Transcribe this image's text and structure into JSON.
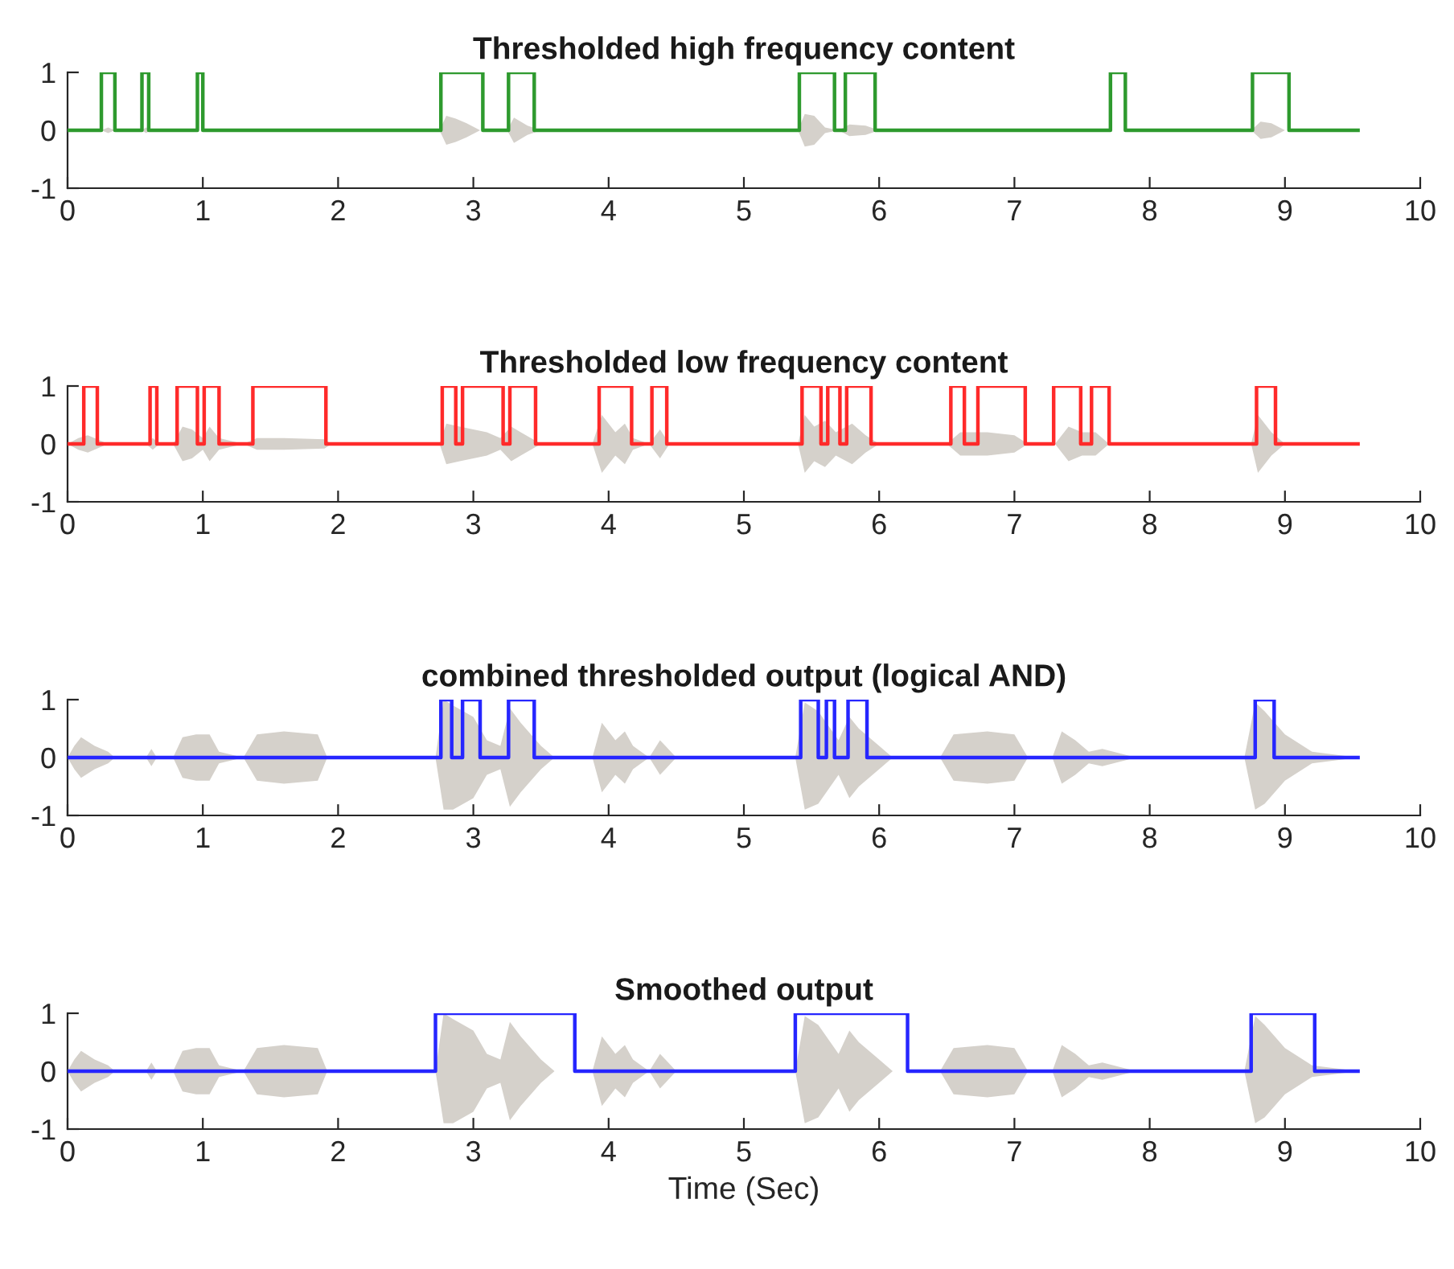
{
  "chart_data": [
    {
      "type": "line",
      "title": "Thresholded high frequency content",
      "xlim": [
        0,
        10
      ],
      "ylim": [
        -1,
        1
      ],
      "xticks": [
        0,
        1,
        2,
        3,
        4,
        5,
        6,
        7,
        8,
        9,
        10
      ],
      "yticks": [
        -1,
        0,
        1
      ],
      "grid": false,
      "tick_labels": true,
      "series": [
        {
          "color": "#d5d1cb",
          "x": [
            0,
            0.25,
            0.3,
            0.35,
            0.55,
            0.58,
            0.62,
            2.75,
            2.8,
            2.87,
            2.95,
            3.05,
            3.25,
            3.3,
            3.4,
            3.5,
            5.4,
            5.45,
            5.52,
            5.6,
            5.7,
            5.78,
            5.9,
            6.0,
            8.75,
            8.82,
            8.9,
            9.0,
            9.54
          ],
          "values": [
            null,
            null,
            null,
            null,
            null,
            null,
            null,
            null,
            null,
            null,
            null,
            null,
            null,
            null,
            null,
            null,
            null,
            null,
            null,
            null,
            null,
            null,
            null,
            null,
            null,
            null,
            null,
            null,
            null
          ],
          "upper": [
            0,
            0,
            0.05,
            0,
            0,
            0.05,
            0,
            0,
            0.25,
            0.2,
            0.12,
            0,
            0,
            0.22,
            0.08,
            0,
            0,
            0.28,
            0.25,
            0.05,
            0,
            0.1,
            0.08,
            0,
            0,
            0.15,
            0.12,
            0,
            0
          ],
          "lower": [
            0,
            0,
            -0.05,
            0,
            0,
            -0.05,
            0,
            0,
            -0.25,
            -0.2,
            -0.12,
            0,
            0,
            -0.22,
            -0.08,
            0,
            0,
            -0.28,
            -0.25,
            -0.05,
            0,
            -0.1,
            -0.08,
            0,
            0,
            -0.15,
            -0.12,
            0,
            0
          ]
        },
        {
          "color": "#2e9a2e",
          "x": [
            0,
            0.25,
            0.25,
            0.35,
            0.35,
            0.55,
            0.55,
            0.6,
            0.6,
            0.96,
            0.96,
            1.0,
            1.0,
            2.76,
            2.76,
            3.07,
            3.07,
            3.26,
            3.26,
            3.45,
            3.45,
            5.41,
            5.41,
            5.67,
            5.67,
            5.75,
            5.75,
            5.97,
            5.97,
            7.71,
            7.71,
            7.82,
            7.82,
            8.76,
            8.76,
            9.03,
            9.03,
            9.54
          ],
          "values": [
            0,
            0,
            1,
            1,
            0,
            0,
            1,
            1,
            0,
            0,
            1,
            1,
            0,
            0,
            1,
            1,
            0,
            0,
            1,
            1,
            0,
            0,
            1,
            1,
            0,
            0,
            1,
            1,
            0,
            0,
            1,
            1,
            0,
            0,
            1,
            1,
            0,
            0
          ]
        }
      ]
    },
    {
      "type": "line",
      "title": "Thresholded low frequency content",
      "xlim": [
        0,
        10
      ],
      "ylim": [
        -1,
        1
      ],
      "xticks": [
        0,
        1,
        2,
        3,
        4,
        5,
        6,
        7,
        8,
        9,
        10
      ],
      "yticks": [
        -1,
        0,
        1
      ],
      "grid": false,
      "tick_labels": true,
      "series": [
        {
          "color": "#d5d1cb",
          "x": [
            0,
            0.08,
            0.15,
            0.25,
            0.3,
            0.58,
            0.63,
            0.68,
            0.78,
            0.85,
            0.92,
            1.0,
            1.05,
            1.12,
            1.3,
            1.4,
            1.6,
            1.9,
            1.95,
            2.75,
            2.8,
            2.9,
            3.0,
            3.1,
            3.2,
            3.28,
            3.35,
            3.5,
            3.88,
            3.95,
            4.05,
            4.12,
            4.18,
            4.3,
            4.38,
            4.45,
            5.4,
            5.45,
            5.52,
            5.6,
            5.68,
            5.8,
            5.9,
            6.0,
            6.5,
            6.6,
            6.8,
            7.0,
            7.1,
            7.3,
            7.4,
            7.5,
            7.6,
            7.7,
            8.75,
            8.8,
            8.9,
            9.0
          ],
          "values": [
            null,
            null,
            null,
            null,
            null,
            null,
            null,
            null,
            null,
            null,
            null,
            null,
            null,
            null,
            null,
            null,
            null,
            null,
            null,
            null,
            null,
            null,
            null,
            null,
            null,
            null,
            null,
            null,
            null,
            null,
            null,
            null,
            null,
            null,
            null,
            null,
            null,
            null,
            null,
            null,
            null,
            null,
            null,
            null,
            null,
            null,
            null,
            null,
            null,
            null,
            null,
            null,
            null,
            null,
            null,
            null,
            null,
            null
          ],
          "upper": [
            0,
            0.1,
            0.15,
            0.05,
            0,
            0,
            0.1,
            0,
            0,
            0.3,
            0.25,
            0.1,
            0.3,
            0.1,
            0,
            0.1,
            0.1,
            0.08,
            0,
            0,
            0.35,
            0.3,
            0.25,
            0.2,
            0.1,
            0.3,
            0.2,
            0,
            0,
            0.5,
            0.2,
            0.35,
            0.1,
            0,
            0.25,
            0,
            0,
            0.5,
            0.3,
            0.4,
            0.2,
            0.35,
            0.15,
            0,
            0,
            0.2,
            0.2,
            0.15,
            0,
            0,
            0.3,
            0.2,
            0.2,
            0,
            0,
            0.5,
            0.2,
            0
          ],
          "lower": [
            0,
            -0.1,
            -0.15,
            -0.05,
            0,
            0,
            -0.1,
            0,
            0,
            -0.3,
            -0.25,
            -0.1,
            -0.3,
            -0.1,
            0,
            -0.1,
            -0.1,
            -0.08,
            0,
            0,
            -0.35,
            -0.3,
            -0.25,
            -0.2,
            -0.1,
            -0.3,
            -0.2,
            0,
            0,
            -0.5,
            -0.2,
            -0.35,
            -0.1,
            0,
            -0.25,
            0,
            0,
            -0.5,
            -0.3,
            -0.4,
            -0.2,
            -0.35,
            -0.15,
            0,
            0,
            -0.2,
            -0.2,
            -0.15,
            0,
            0,
            -0.3,
            -0.2,
            -0.2,
            0,
            0,
            -0.5,
            -0.2,
            0
          ]
        },
        {
          "color": "#ff2a2a",
          "x": [
            0,
            0.12,
            0.12,
            0.22,
            0.22,
            0.61,
            0.61,
            0.66,
            0.66,
            0.81,
            0.81,
            0.96,
            0.96,
            1.01,
            1.01,
            1.12,
            1.12,
            1.37,
            1.37,
            1.91,
            1.91,
            2.77,
            2.77,
            2.87,
            2.87,
            2.92,
            2.92,
            3.22,
            3.22,
            3.27,
            3.27,
            3.46,
            3.46,
            3.93,
            3.93,
            4.17,
            4.17,
            4.32,
            4.32,
            4.43,
            4.43,
            5.43,
            5.43,
            5.57,
            5.57,
            5.62,
            5.62,
            5.71,
            5.71,
            5.76,
            5.76,
            5.94,
            5.94,
            6.53,
            6.53,
            6.63,
            6.63,
            6.73,
            6.73,
            7.08,
            7.08,
            7.29,
            7.29,
            7.49,
            7.49,
            7.57,
            7.57,
            7.7,
            7.7,
            8.79,
            8.79,
            8.93,
            8.93,
            9.54
          ],
          "values": [
            0,
            0,
            1,
            1,
            0,
            0,
            1,
            1,
            0,
            0,
            1,
            1,
            0,
            0,
            1,
            1,
            0,
            0,
            1,
            1,
            0,
            0,
            1,
            1,
            0,
            0,
            1,
            1,
            0,
            0,
            1,
            1,
            0,
            0,
            1,
            1,
            0,
            0,
            1,
            1,
            0,
            0,
            1,
            1,
            0,
            0,
            1,
            1,
            0,
            0,
            1,
            1,
            0,
            0,
            1,
            1,
            0,
            0,
            1,
            1,
            0,
            0,
            1,
            1,
            0,
            0,
            1,
            1,
            0,
            0,
            1,
            1,
            0,
            0
          ]
        }
      ]
    },
    {
      "type": "line",
      "title": "combined thresholded output (logical AND)",
      "xlim": [
        0,
        10
      ],
      "ylim": [
        -1,
        1
      ],
      "xticks": [
        0,
        1,
        2,
        3,
        4,
        5,
        6,
        7,
        8,
        9,
        10
      ],
      "yticks": [
        -1,
        0,
        1
      ],
      "grid": false,
      "tick_labels": true,
      "series": [
        {
          "color": "#d5d1cb",
          "x": [
            0,
            0.05,
            0.1,
            0.2,
            0.3,
            0.35,
            0.58,
            0.62,
            0.66,
            0.78,
            0.85,
            0.95,
            1.05,
            1.12,
            1.3,
            1.4,
            1.6,
            1.85,
            1.92,
            2.72,
            2.78,
            2.85,
            3.0,
            3.1,
            3.2,
            3.27,
            3.35,
            3.5,
            3.6,
            3.88,
            3.95,
            4.05,
            4.12,
            4.18,
            4.3,
            4.38,
            4.42,
            4.5,
            5.38,
            5.45,
            5.55,
            5.7,
            5.78,
            5.85,
            6.0,
            6.1,
            6.45,
            6.55,
            6.8,
            7.0,
            7.1,
            7.28,
            7.35,
            7.45,
            7.55,
            7.65,
            7.9,
            8.7,
            8.78,
            8.85,
            9.0,
            9.2,
            9.54
          ],
          "values": [
            null,
            null,
            null,
            null,
            null,
            null,
            null,
            null,
            null,
            null,
            null,
            null,
            null,
            null,
            null,
            null,
            null,
            null,
            null,
            null,
            null,
            null,
            null,
            null,
            null,
            null,
            null,
            null,
            null,
            null,
            null,
            null,
            null,
            null,
            null,
            null,
            null,
            null,
            null,
            null,
            null,
            null,
            null,
            null,
            null,
            null,
            null,
            null,
            null,
            null,
            null,
            null,
            null,
            null,
            null,
            null,
            null,
            null,
            null,
            null,
            null,
            null,
            null
          ],
          "upper": [
            0,
            0.2,
            0.35,
            0.2,
            0.1,
            0,
            0,
            0.15,
            0,
            0,
            0.35,
            0.4,
            0.4,
            0.1,
            0,
            0.4,
            0.45,
            0.4,
            0,
            0,
            1,
            0.9,
            0.7,
            0.3,
            0.2,
            0.85,
            0.6,
            0.2,
            0,
            0,
            0.6,
            0.3,
            0.45,
            0.2,
            0,
            0.3,
            0.2,
            0,
            0,
            0.95,
            0.8,
            0.3,
            0.7,
            0.5,
            0.2,
            0,
            0,
            0.4,
            0.45,
            0.4,
            0,
            0,
            0.45,
            0.3,
            0.1,
            0.15,
            0,
            0,
            0.95,
            0.8,
            0.4,
            0.1,
            0
          ],
          "lower": [
            0,
            -0.2,
            -0.35,
            -0.2,
            -0.1,
            0,
            0,
            -0.15,
            0,
            0,
            -0.35,
            -0.4,
            -0.4,
            -0.1,
            0,
            -0.4,
            -0.45,
            -0.4,
            0,
            0,
            -0.9,
            -0.9,
            -0.7,
            -0.3,
            -0.2,
            -0.85,
            -0.6,
            -0.2,
            0,
            0,
            -0.6,
            -0.3,
            -0.45,
            -0.2,
            0,
            -0.3,
            -0.2,
            0,
            0,
            -0.9,
            -0.8,
            -0.3,
            -0.7,
            -0.5,
            -0.2,
            0,
            0,
            -0.4,
            -0.45,
            -0.4,
            0,
            0,
            -0.45,
            -0.3,
            -0.1,
            -0.15,
            0,
            0,
            -0.9,
            -0.8,
            -0.4,
            -0.1,
            0
          ]
        },
        {
          "color": "#2626ff",
          "x": [
            0,
            2.76,
            2.76,
            2.84,
            2.84,
            2.92,
            2.92,
            3.05,
            3.05,
            3.26,
            3.26,
            3.45,
            3.45,
            5.42,
            5.42,
            5.55,
            5.55,
            5.61,
            5.61,
            5.67,
            5.67,
            5.77,
            5.77,
            5.91,
            5.91,
            8.78,
            8.78,
            8.92,
            8.92,
            9.54
          ],
          "values": [
            0,
            0,
            1,
            1,
            0,
            0,
            1,
            1,
            0,
            0,
            1,
            1,
            0,
            0,
            1,
            1,
            0,
            0,
            1,
            1,
            0,
            0,
            1,
            1,
            0,
            0,
            1,
            1,
            0,
            0
          ]
        }
      ]
    },
    {
      "type": "line",
      "title": "Smoothed output",
      "xlabel": "Time (Sec)",
      "xlim": [
        0,
        10
      ],
      "ylim": [
        -1,
        1
      ],
      "xticks": [
        0,
        1,
        2,
        3,
        4,
        5,
        6,
        7,
        8,
        9,
        10
      ],
      "yticks": [
        -1,
        0,
        1
      ],
      "grid": false,
      "tick_labels": true,
      "series": [
        {
          "color": "#d5d1cb",
          "x": [
            0,
            0.05,
            0.1,
            0.2,
            0.3,
            0.35,
            0.58,
            0.62,
            0.66,
            0.78,
            0.85,
            0.95,
            1.05,
            1.12,
            1.3,
            1.4,
            1.6,
            1.85,
            1.92,
            2.72,
            2.78,
            2.85,
            3.0,
            3.1,
            3.2,
            3.27,
            3.35,
            3.5,
            3.6,
            3.88,
            3.95,
            4.05,
            4.12,
            4.18,
            4.3,
            4.38,
            4.42,
            4.5,
            5.38,
            5.45,
            5.55,
            5.7,
            5.78,
            5.85,
            6.0,
            6.1,
            6.45,
            6.55,
            6.8,
            7.0,
            7.1,
            7.28,
            7.35,
            7.45,
            7.55,
            7.65,
            7.9,
            8.7,
            8.78,
            8.85,
            9.0,
            9.2,
            9.54
          ],
          "values": [
            null,
            null,
            null,
            null,
            null,
            null,
            null,
            null,
            null,
            null,
            null,
            null,
            null,
            null,
            null,
            null,
            null,
            null,
            null,
            null,
            null,
            null,
            null,
            null,
            null,
            null,
            null,
            null,
            null,
            null,
            null,
            null,
            null,
            null,
            null,
            null,
            null,
            null,
            null,
            null,
            null,
            null,
            null,
            null,
            null,
            null,
            null,
            null,
            null,
            null,
            null,
            null,
            null,
            null,
            null,
            null,
            null,
            null,
            null,
            null,
            null,
            null,
            null
          ],
          "upper": [
            0,
            0.2,
            0.35,
            0.2,
            0.1,
            0,
            0,
            0.15,
            0,
            0,
            0.35,
            0.4,
            0.4,
            0.1,
            0,
            0.4,
            0.45,
            0.4,
            0,
            0,
            1,
            0.9,
            0.7,
            0.3,
            0.2,
            0.85,
            0.6,
            0.2,
            0,
            0,
            0.6,
            0.3,
            0.45,
            0.2,
            0,
            0.3,
            0.2,
            0,
            0,
            0.95,
            0.8,
            0.3,
            0.7,
            0.5,
            0.2,
            0,
            0,
            0.4,
            0.45,
            0.4,
            0,
            0,
            0.45,
            0.3,
            0.1,
            0.15,
            0,
            0,
            0.95,
            0.8,
            0.4,
            0.1,
            0
          ],
          "lower": [
            0,
            -0.2,
            -0.35,
            -0.2,
            -0.1,
            0,
            0,
            -0.15,
            0,
            0,
            -0.35,
            -0.4,
            -0.4,
            -0.1,
            0,
            -0.4,
            -0.45,
            -0.4,
            0,
            0,
            -0.9,
            -0.9,
            -0.7,
            -0.3,
            -0.2,
            -0.85,
            -0.6,
            -0.2,
            0,
            0,
            -0.6,
            -0.3,
            -0.45,
            -0.2,
            0,
            -0.3,
            -0.2,
            0,
            0,
            -0.9,
            -0.8,
            -0.3,
            -0.7,
            -0.5,
            -0.2,
            0,
            0,
            -0.4,
            -0.45,
            -0.4,
            0,
            0,
            -0.45,
            -0.3,
            -0.1,
            -0.15,
            0,
            0,
            -0.9,
            -0.8,
            -0.4,
            -0.1,
            0
          ]
        },
        {
          "color": "#2626ff",
          "x": [
            0,
            2.72,
            2.72,
            3.75,
            3.75,
            5.38,
            5.38,
            6.21,
            6.21,
            8.75,
            8.75,
            9.22,
            9.22,
            9.54
          ],
          "values": [
            0,
            0,
            1,
            1,
            0,
            0,
            1,
            1,
            0,
            0,
            1,
            1,
            0,
            0
          ]
        }
      ]
    }
  ]
}
